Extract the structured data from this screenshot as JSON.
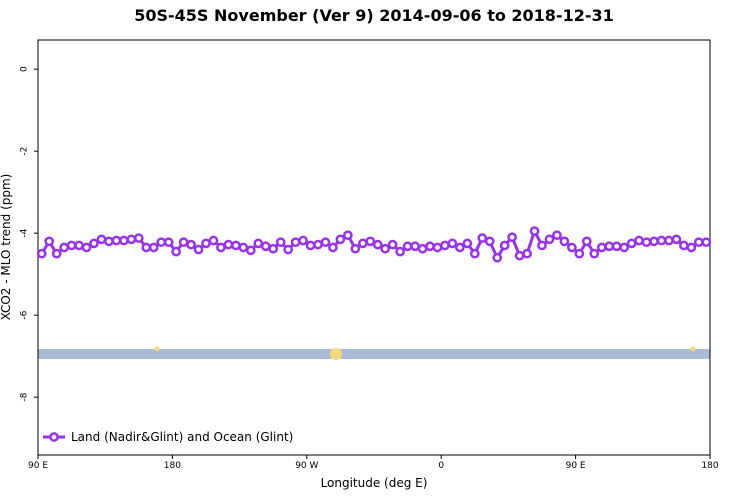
{
  "chart_data": {
    "type": "line",
    "title": "50S-45S November (Ver 9)   2014-09-06 to 2018-12-31",
    "xlabel": "Longitude (deg E)",
    "ylabel": "XCO2 - MLO trend (ppm)",
    "xlim": [
      90,
      540
    ],
    "ylim": [
      -9.41,
      0.71
    ],
    "xticks": [
      {
        "value": 90,
        "label": "90 E"
      },
      {
        "value": 180,
        "label": "180"
      },
      {
        "value": 270,
        "label": "90 W"
      },
      {
        "value": 360,
        "label": "0"
      },
      {
        "value": 450,
        "label": "90 E"
      },
      {
        "value": 540,
        "label": "180"
      }
    ],
    "yticks": [
      0,
      -2,
      -4,
      -6,
      -8
    ],
    "legend": "bottom-left",
    "x": [
      92.5,
      97.5,
      102.5,
      107.5,
      112.5,
      117.5,
      122.5,
      127.5,
      132.5,
      137.5,
      142.5,
      147.5,
      152.5,
      157.5,
      162.5,
      167.5,
      172.5,
      177.5,
      182.5,
      187.5,
      192.5,
      197.5,
      202.5,
      207.5,
      212.5,
      217.5,
      222.5,
      227.5,
      232.5,
      237.5,
      242.5,
      247.5,
      252.5,
      257.5,
      262.5,
      267.5,
      272.5,
      277.5,
      282.5,
      287.5,
      292.5,
      297.5,
      302.5,
      307.5,
      312.5,
      317.5,
      322.5,
      327.5,
      332.5,
      337.5,
      342.5,
      347.5,
      352.5,
      357.5,
      362.5,
      367.5,
      372.5,
      377.5,
      382.5,
      387.5,
      392.5,
      397.5,
      402.5,
      407.5,
      412.5,
      417.5,
      422.5,
      427.5,
      432.5,
      437.5,
      442.5,
      447.5,
      452.5,
      457.5,
      462.5,
      467.5,
      472.5,
      477.5,
      482.5,
      487.5,
      492.5,
      497.5,
      502.5,
      507.5,
      512.5,
      517.5,
      522.5,
      527.5,
      532.5,
      537.5
    ],
    "series": [
      {
        "name": "Land (Nadir&Glint) and Ocean (Glint)",
        "color": "#9932ee",
        "values": [
          -4.5,
          -4.2,
          -4.5,
          -4.35,
          -4.3,
          -4.3,
          -4.35,
          -4.25,
          -4.15,
          -4.2,
          -4.18,
          -4.18,
          -4.15,
          -4.12,
          -4.35,
          -4.35,
          -4.22,
          -4.22,
          -4.45,
          -4.22,
          -4.28,
          -4.4,
          -4.25,
          -4.18,
          -4.35,
          -4.28,
          -4.3,
          -4.35,
          -4.42,
          -4.25,
          -4.32,
          -4.38,
          -4.22,
          -4.4,
          -4.22,
          -4.18,
          -4.3,
          -4.28,
          -4.22,
          -4.35,
          -4.15,
          -4.05,
          -4.38,
          -4.25,
          -4.2,
          -4.28,
          -4.38,
          -4.28,
          -4.45,
          -4.32,
          -4.32,
          -4.38,
          -4.32,
          -4.35,
          -4.3,
          -4.25,
          -4.35,
          -4.25,
          -4.5,
          -4.12,
          -4.2,
          -4.6,
          -4.3,
          -4.1,
          -4.55,
          -4.5,
          -3.95,
          -4.3,
          -4.15,
          -4.05,
          -4.2,
          -4.35,
          -4.5,
          -4.2,
          -4.5,
          -4.35,
          -4.32,
          -4.32,
          -4.35,
          -4.25,
          -4.18,
          -4.22,
          -4.2,
          -4.18,
          -4.18,
          -4.15,
          -4.3,
          -4.35,
          -4.22,
          -4.22
        ]
      }
    ]
  }
}
